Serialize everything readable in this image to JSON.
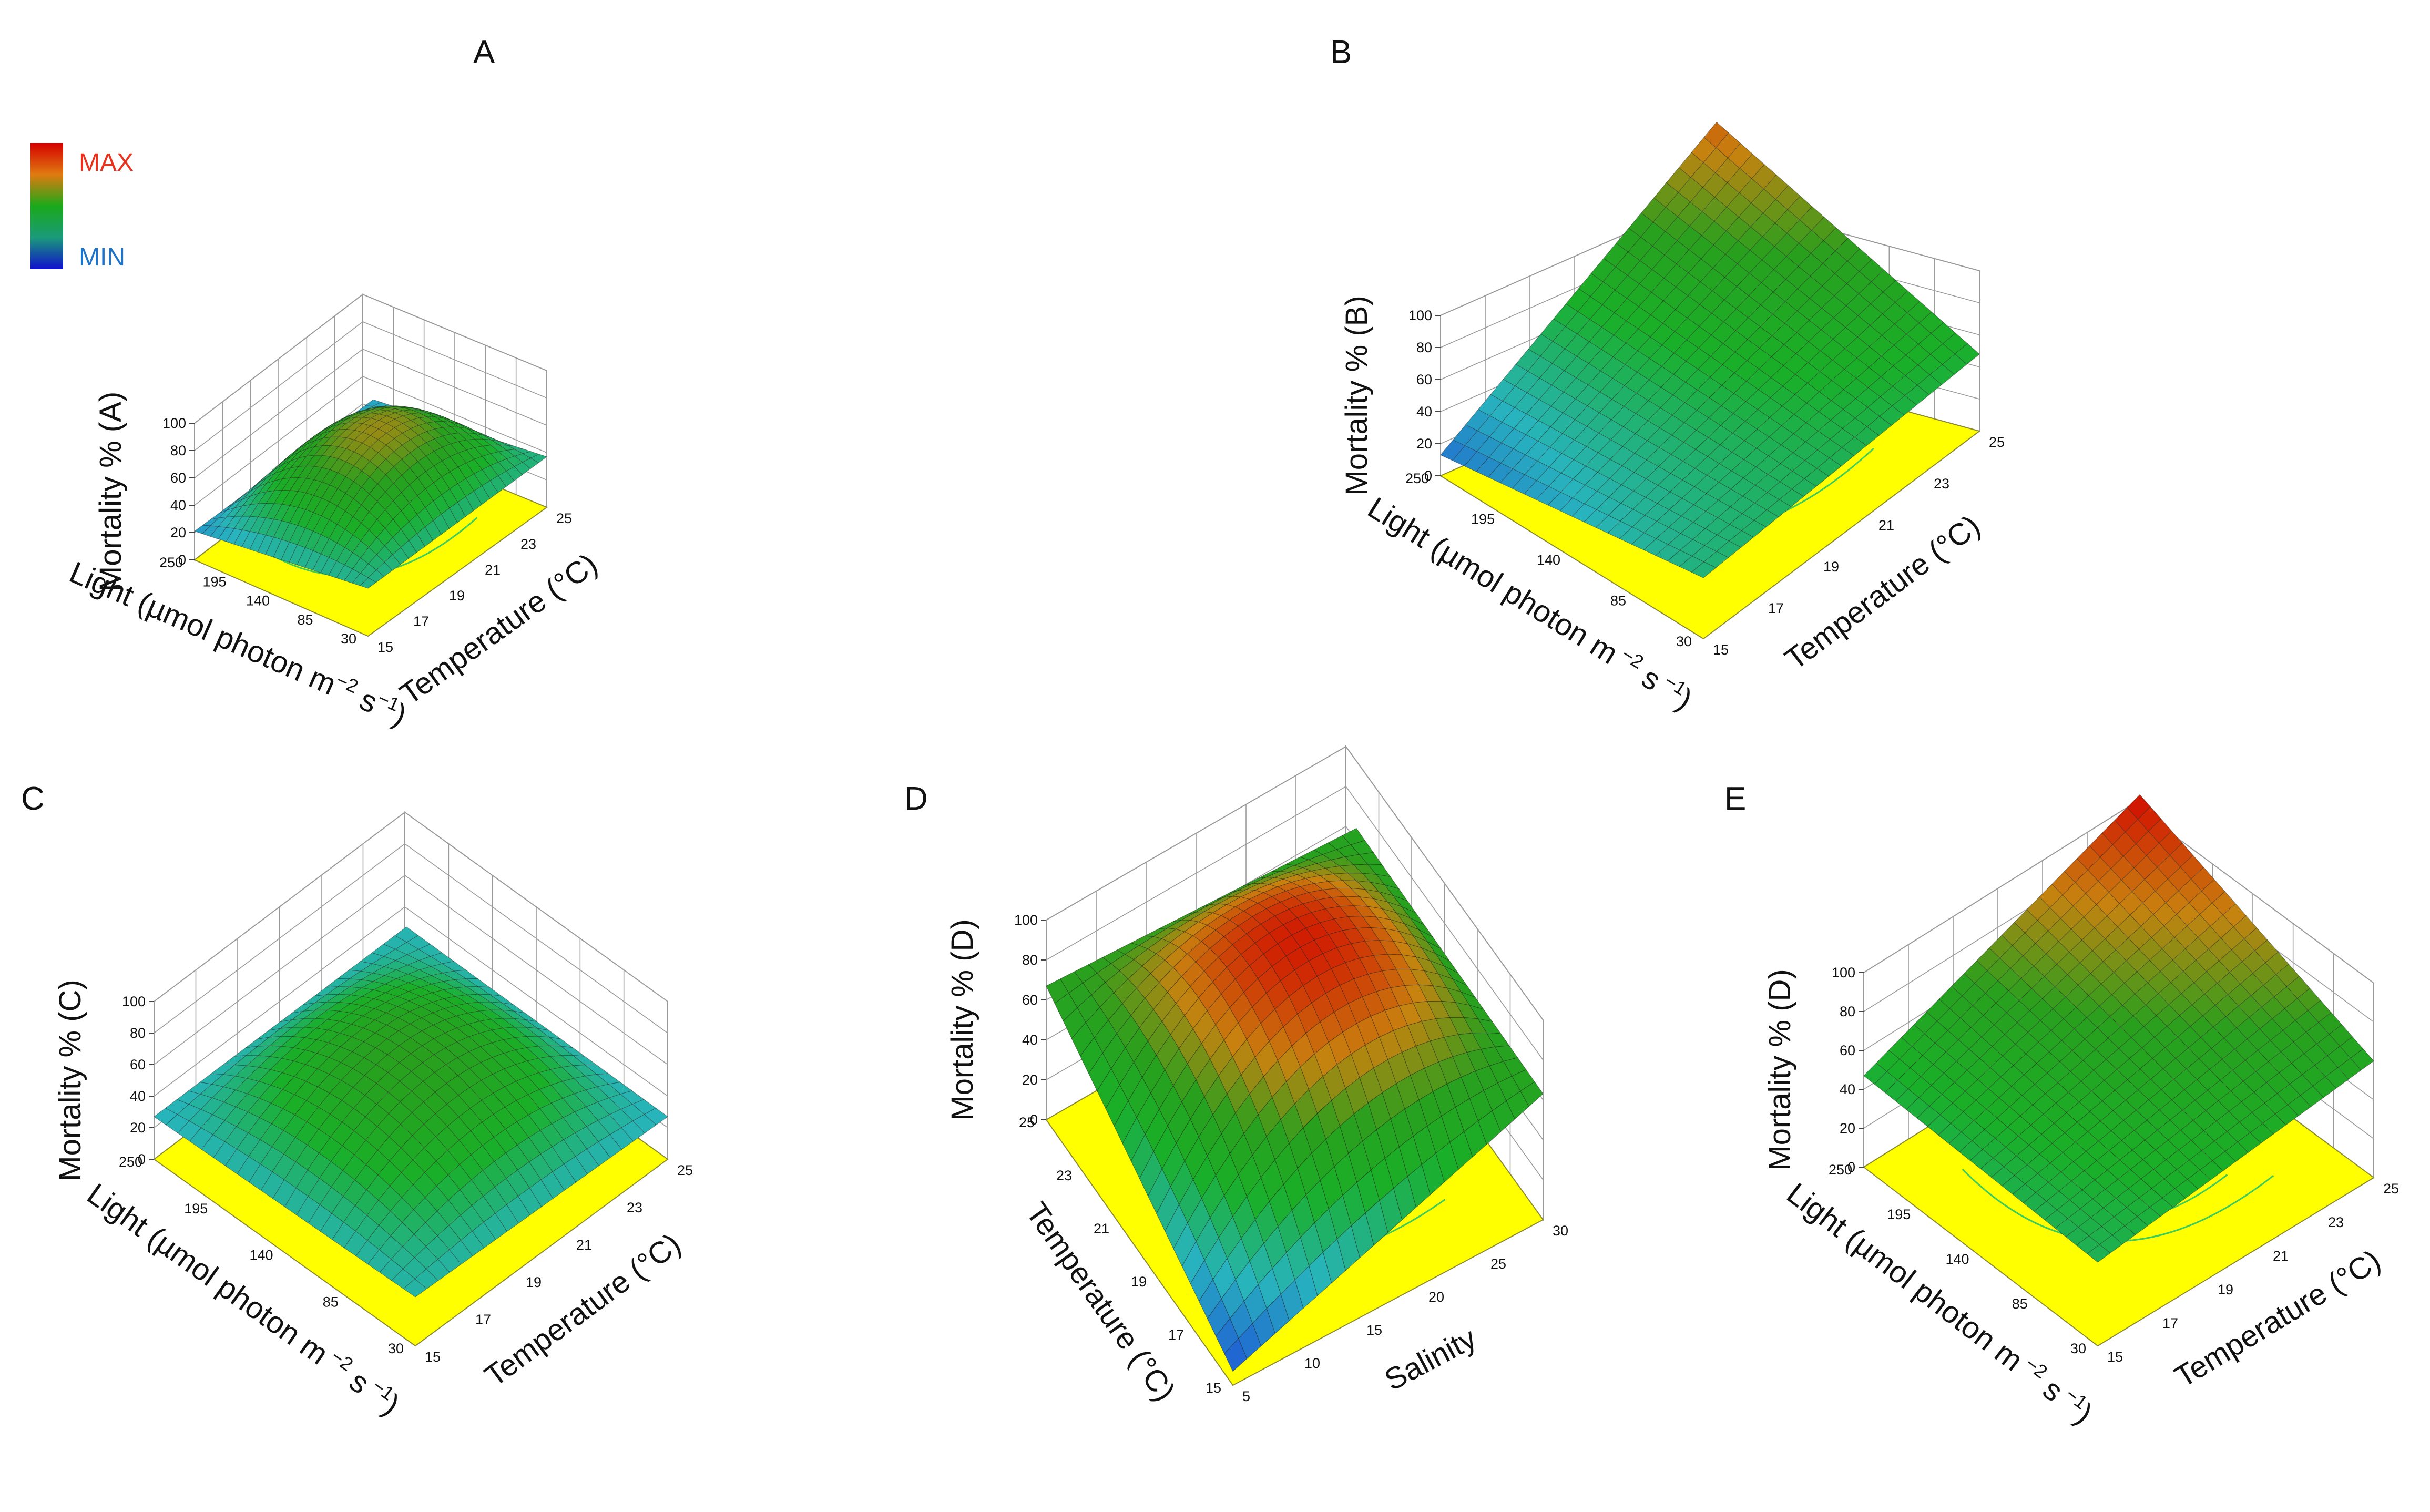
{
  "legend": {
    "max_label": "MAX",
    "min_label": "MIN",
    "max_color": "#e8321e",
    "min_color": "#1f74c8"
  },
  "colors": {
    "floor": "#ffff00",
    "contour": "#3ccc5a",
    "grid": "#9a9a9a"
  },
  "chart_data": [
    {
      "type": "surface",
      "panel": "A",
      "zlabel": "Mortality % (A)",
      "xlabel": "Temperature (°C)",
      "ylabel": "Light (µmol photon m⁻² s⁻¹)",
      "xlabel_parts": {
        "text": "Temperature (°C)"
      },
      "ylabel_parts": {
        "main": "Light (µmol photon m",
        "sup1": "−2",
        "mid": " s",
        "sup2": "−1",
        "end": ")"
      },
      "x_ticks": [
        "15",
        "17",
        "19",
        "21",
        "23",
        "25"
      ],
      "y_ticks": [
        "30",
        "85",
        "140",
        "195",
        "250"
      ],
      "z_ticks": [
        "0",
        "20",
        "40",
        "60",
        "80",
        "100"
      ],
      "zlim": [
        0,
        100
      ],
      "corners": {
        "t15_l30": 30,
        "t25_l30": 32,
        "t15_l250": 16,
        "t25_l250": 18
      },
      "peak": 74,
      "mesh_color": "#2b2b2b"
    },
    {
      "type": "surface",
      "panel": "B",
      "zlabel": "Mortality % (B)",
      "xlabel": "Temperature (°C)",
      "ylabel": "Light (µmol photon m⁻² s⁻¹)",
      "xlabel_parts": {
        "text": "Temperature (°C)"
      },
      "ylabel_parts": {
        "main": "Light (µmol photon m",
        "sup1": " −2",
        "mid": " s",
        "sup2": " −1",
        "end": ")"
      },
      "x_ticks": [
        "15",
        "17",
        "19",
        "21",
        "23",
        "25"
      ],
      "y_ticks": [
        "30",
        "85",
        "140",
        "195",
        "250"
      ],
      "z_ticks": [
        "0",
        "20",
        "40",
        "60",
        "80",
        "100"
      ],
      "zlim": [
        0,
        100
      ],
      "corners": {
        "t15_l30": 33,
        "t25_l30": 43,
        "t15_l250": 8,
        "t25_l250": 86
      },
      "peak": 0,
      "mesh_color": "#2b2b2b"
    },
    {
      "type": "surface",
      "panel": "C",
      "zlabel": "Mortality %  (C)",
      "xlabel": "Temperature (°C)",
      "ylabel": "Light (µmol photon m⁻² s⁻¹)",
      "xlabel_parts": {
        "text": "Temperature (°C)"
      },
      "ylabel_parts": {
        "main": "Light (µmol photon m",
        "sup1": " −2",
        "mid": " s",
        "sup2": " −1",
        "end": ")"
      },
      "x_ticks": [
        "15",
        "17",
        "19",
        "21",
        "23",
        "25"
      ],
      "y_ticks": [
        "30",
        "85",
        "140",
        "195",
        "250"
      ],
      "z_ticks": [
        "0",
        "20",
        "40",
        "60",
        "80",
        "100"
      ],
      "zlim": [
        0,
        100
      ],
      "corners": {
        "t15_l30": 26,
        "t25_l30": 22,
        "t15_l250": 22,
        "t25_l250": 24
      },
      "peak": 62,
      "mesh_color": "#2b2b2b"
    },
    {
      "type": "surface",
      "panel": "D",
      "zlabel": "Mortality %  (D)",
      "xlabel": "Salinity",
      "ylabel": "Temperature (°C)",
      "xlabel_parts": {
        "text": "Salinity"
      },
      "ylabel_parts": {
        "main": "Temperature (°C)",
        "sup1": "",
        "mid": "",
        "sup2": "",
        "end": ""
      },
      "x_ticks": [
        "5",
        "10",
        "15",
        "20",
        "25",
        "30"
      ],
      "y_ticks": [
        "15",
        "17",
        "19",
        "21",
        "23",
        "25"
      ],
      "z_ticks": [
        "0",
        "20",
        "40",
        "60",
        "80",
        "100"
      ],
      "zlim": [
        0,
        100
      ],
      "corners": {
        "t15_l30": 2,
        "t25_l30": 58,
        "t15_l250": 62,
        "t25_l250": 58
      },
      "peak": 95,
      "mesh_color": "#1e1e1e"
    },
    {
      "type": "surface",
      "panel": "E",
      "zlabel": "Mortality %  (D)",
      "xlabel": "Temperature (°C)",
      "ylabel": "Light (µmol photon m⁻² s⁻¹)",
      "xlabel_parts": {
        "text": "Temperature (°C)"
      },
      "ylabel_parts": {
        "main": "Light (µmol photon m",
        "sup1": " −2",
        "mid": " s",
        "sup2": " −1",
        "end": ")"
      },
      "x_ticks": [
        "15",
        "17",
        "19",
        "21",
        "23",
        "25"
      ],
      "y_ticks": [
        "30",
        "85",
        "140",
        "195",
        "250"
      ],
      "z_ticks": [
        "0",
        "20",
        "40",
        "60",
        "80",
        "100"
      ],
      "zlim": [
        0,
        100
      ],
      "corners": {
        "t15_l30": 38,
        "t25_l30": 55,
        "t15_l250": 42,
        "t25_l250": 100
      },
      "peak": 0,
      "mesh_color": "#2b2b2b"
    }
  ]
}
